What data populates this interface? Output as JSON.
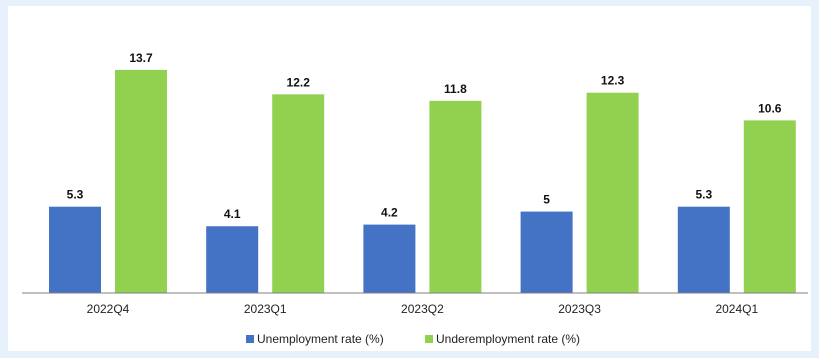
{
  "chart_data": {
    "type": "bar",
    "categories": [
      "2022Q4",
      "2023Q1",
      "2023Q2",
      "2023Q3",
      "2024Q1"
    ],
    "series": [
      {
        "name": "Unemployment rate (%)",
        "values": [
          5.3,
          4.1,
          4.2,
          5,
          5.3
        ],
        "color": "#4472c4"
      },
      {
        "name": "Underemployment rate (%)",
        "values": [
          13.7,
          12.2,
          11.8,
          12.3,
          10.6
        ],
        "color": "#92d050"
      }
    ],
    "value_labels": [
      [
        "5.3",
        "4.1",
        "4.2",
        "5",
        "5.3"
      ],
      [
        "13.7",
        "12.2",
        "11.8",
        "12.3",
        "10.6"
      ]
    ],
    "title": "",
    "xlabel": "",
    "ylabel": "",
    "ylim": [
      0,
      14.8
    ],
    "grid": false,
    "legend_position": "bottom-center"
  },
  "colors": {
    "background": "#e7f1fb",
    "panel": "#ffffff",
    "axis": "#7f7f7f"
  }
}
